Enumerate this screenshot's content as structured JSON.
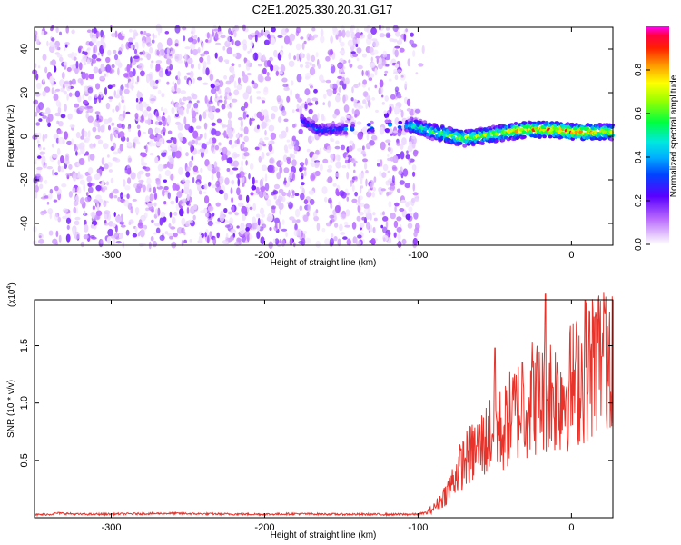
{
  "title": "C2E1.2025.330.20.31.G17",
  "chart_data": [
    {
      "type": "heatmap",
      "xlabel": "Height of straight line (km)",
      "ylabel": "Frequency (Hz)",
      "xlim": [
        -350,
        27
      ],
      "ylim": [
        -50,
        50
      ],
      "xticks": [
        -300,
        -200,
        -100,
        0
      ],
      "yticks": [
        -40,
        -20,
        0,
        20,
        40
      ],
      "noise_region": {
        "x": [
          -350,
          -95
        ],
        "y": [
          -50,
          50
        ],
        "amplitude_range": [
          0.02,
          0.2
        ]
      },
      "signal_track": {
        "x": [
          -175,
          -165,
          -155,
          -105,
          -90,
          -70,
          -50,
          -30,
          -10,
          0,
          10,
          27
        ],
        "freq": [
          7,
          3,
          3,
          5,
          2,
          -1,
          1,
          3,
          3,
          2,
          2,
          2
        ],
        "amplitude": [
          0.3,
          0.4,
          0.35,
          0.5,
          0.6,
          0.75,
          0.7,
          0.85,
          0.9,
          0.95,
          0.9,
          0.8
        ]
      },
      "colorbar": {
        "label": "Normalized spectral amplitude",
        "range": [
          0.0,
          1.0
        ],
        "ticks": [
          "0.0",
          "0.2",
          "0.4",
          "0.6",
          "0.8"
        ],
        "tick_values": [
          0.0,
          0.2,
          0.4,
          0.6,
          0.8
        ]
      }
    },
    {
      "type": "line",
      "xlabel": "Height of straight line (km)",
      "ylabel": "SNR (10 * v/v)",
      "y_multiplier": "(x10",
      "y_multiplier_exp": "4",
      "y_multiplier_close": ")",
      "xlim": [
        -350,
        27
      ],
      "ylim": [
        0,
        19000
      ],
      "xticks": [
        -300,
        -200,
        -100,
        0
      ],
      "yticks": [
        {
          "value": 5000,
          "label": "0.5"
        },
        {
          "value": 10000,
          "label": "1.0"
        },
        {
          "value": 15000,
          "label": "1.5"
        }
      ],
      "color": "#e8332b",
      "series": [
        {
          "name": "SNR",
          "x": [
            -350,
            -340,
            -335,
            -320,
            -300,
            -260,
            -240,
            -200,
            -180,
            -150,
            -120,
            -100,
            -95,
            -90,
            -85,
            -80,
            -75,
            -70,
            -65,
            -60,
            -55,
            -50,
            -45,
            -40,
            -35,
            -30,
            -25,
            -20,
            -15,
            -10,
            -5,
            0,
            5,
            10,
            15,
            20,
            27
          ],
          "y": [
            250,
            300,
            400,
            300,
            320,
            380,
            330,
            300,
            340,
            300,
            290,
            300,
            450,
            900,
            1700,
            2800,
            4300,
            5500,
            6200,
            6900,
            7600,
            9000,
            8200,
            9700,
            10500,
            11000,
            11800,
            11500,
            12400,
            11900,
            12200,
            12800,
            13500,
            14300,
            15200,
            16000,
            17500
          ]
        }
      ],
      "peaks": [
        {
          "x": -50,
          "y": 14800
        },
        {
          "x": -32,
          "y": 13500
        },
        {
          "x": -17,
          "y": 19500
        },
        {
          "x": 9,
          "y": 19000
        },
        {
          "x": 22,
          "y": 17800
        }
      ]
    }
  ]
}
